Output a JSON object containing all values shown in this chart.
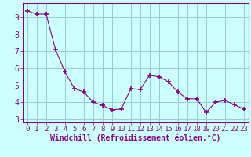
{
  "x": [
    0,
    1,
    2,
    3,
    4,
    5,
    6,
    7,
    8,
    9,
    10,
    11,
    12,
    13,
    14,
    15,
    16,
    17,
    18,
    19,
    20,
    21,
    22,
    23
  ],
  "y": [
    9.4,
    9.2,
    9.2,
    7.1,
    5.8,
    4.8,
    4.6,
    4.0,
    3.8,
    3.55,
    3.6,
    4.8,
    4.75,
    5.6,
    5.5,
    5.2,
    4.6,
    4.2,
    4.2,
    3.4,
    4.0,
    4.1,
    3.85,
    3.6
  ],
  "line_color": "#880088",
  "marker": "+",
  "marker_size": 4,
  "marker_lw": 1.2,
  "bg_color": "#ccffff",
  "grid_color": "#99cccc",
  "axis_line_color": "#880088",
  "xlabel": "Windchill (Refroidissement éolien,°C)",
  "xlabel_color": "#880088",
  "xlabel_fontsize": 7,
  "ylabel_ticks": [
    3,
    4,
    5,
    6,
    7,
    8,
    9
  ],
  "ylim": [
    2.8,
    9.85
  ],
  "xlim": [
    -0.5,
    23.5
  ],
  "tick_fontsize": 6.5,
  "tick_color": "#880088",
  "line_width": 0.8
}
